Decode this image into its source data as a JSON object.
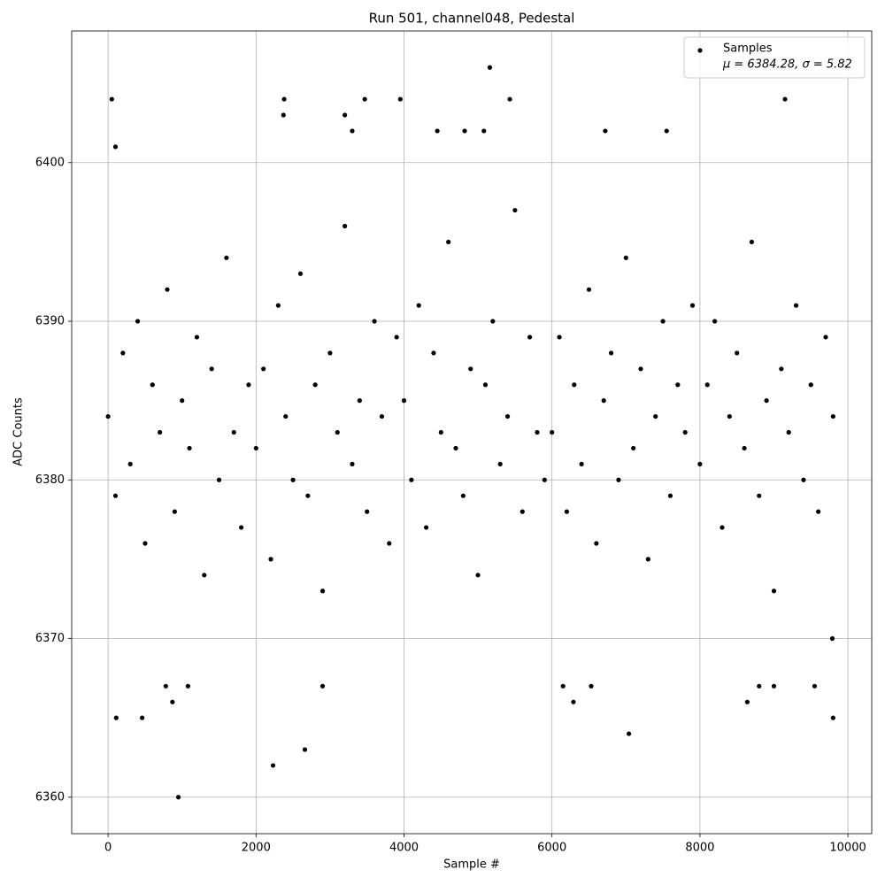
{
  "chart_data": {
    "type": "scatter",
    "title": "Run 501, channel048, Pedestal",
    "xlabel": "Sample #",
    "ylabel": "ADC Counts",
    "xlim": [
      -492,
      10322
    ],
    "ylim": [
      6357.7,
      6408.3
    ],
    "xticks": [
      0,
      2000,
      4000,
      6000,
      8000,
      10000
    ],
    "yticks": [
      6360,
      6370,
      6380,
      6390,
      6400
    ],
    "grid": true,
    "legend_position": "upper right",
    "legend_note": "μ = 6384.28, σ = 5.82",
    "x": [
      50,
      100,
      110,
      460,
      950,
      870,
      2230,
      2660,
      2380,
      2370,
      3200,
      3300,
      3470,
      3950,
      4450,
      4820,
      5080,
      5160,
      5430,
      6720,
      7550,
      9150,
      7040,
      6290,
      8640,
      9800,
      9790,
      780,
      1080,
      2900,
      6150,
      6530,
      8800,
      9550,
      9000,
      0,
      100,
      200,
      300,
      400,
      500,
      600,
      700,
      800,
      900,
      1000,
      1100,
      1200,
      1300,
      1400,
      1500,
      1600,
      1700,
      1800,
      1900,
      2000,
      2100,
      2200,
      2300,
      2400,
      2500,
      2600,
      2700,
      2800,
      2900,
      3000,
      3100,
      3200,
      3300,
      3400,
      3500,
      3600,
      3700,
      3800,
      3900,
      4000,
      4100,
      4200,
      4300,
      4400,
      4500,
      4600,
      4700,
      4800,
      4900,
      5000,
      5100,
      5200,
      5300,
      5400,
      5500,
      5600,
      5700,
      5800,
      5900,
      6000,
      6100,
      6200,
      6300,
      6400,
      6500,
      6600,
      6700,
      6800,
      6900,
      7000,
      7100,
      7200,
      7300,
      7400,
      7500,
      7600,
      7700,
      7800,
      7900,
      8000,
      8100,
      8200,
      8300,
      8400,
      8500,
      8600,
      8700,
      8800,
      8900,
      9000,
      9100,
      9200,
      9300,
      9400,
      9500,
      9600,
      9700,
      9800
    ],
    "series": [
      {
        "name": "Samples",
        "color": "#000000",
        "values": [
          6404,
          6401,
          6365,
          6365,
          6360,
          6366,
          6362,
          6363,
          6404,
          6403,
          6403,
          6402,
          6404,
          6404,
          6402,
          6402,
          6402,
          6406,
          6404,
          6402,
          6402,
          6404,
          6364,
          6366,
          6366,
          6365,
          6370,
          6367,
          6367,
          6367,
          6367,
          6367,
          6367,
          6367,
          6367,
          6384,
          6379,
          6388,
          6381,
          6390,
          6376,
          6386,
          6383,
          6392,
          6378,
          6385,
          6382,
          6389,
          6374,
          6387,
          6380,
          6394,
          6383,
          6377,
          6386,
          6382,
          6387,
          6375,
          6391,
          6384,
          6380,
          6393,
          6379,
          6386,
          6373,
          6388,
          6383,
          6396,
          6381,
          6385,
          6378,
          6390,
          6384,
          6376,
          6389,
          6385,
          6380,
          6391,
          6377,
          6388,
          6383,
          6395,
          6382,
          6379,
          6387,
          6374,
          6386,
          6390,
          6381,
          6384,
          6397,
          6378,
          6389,
          6383,
          6380,
          6383,
          6389,
          6378,
          6386,
          6381,
          6392,
          6376,
          6385,
          6388,
          6380,
          6394,
          6382,
          6387,
          6375,
          6384,
          6390,
          6379,
          6386,
          6383,
          6391,
          6381,
          6386,
          6390,
          6377,
          6384,
          6388,
          6382,
          6395,
          6379,
          6385,
          6373,
          6387,
          6383,
          6391,
          6380,
          6386,
          6378,
          6389,
          6384
        ]
      }
    ]
  }
}
